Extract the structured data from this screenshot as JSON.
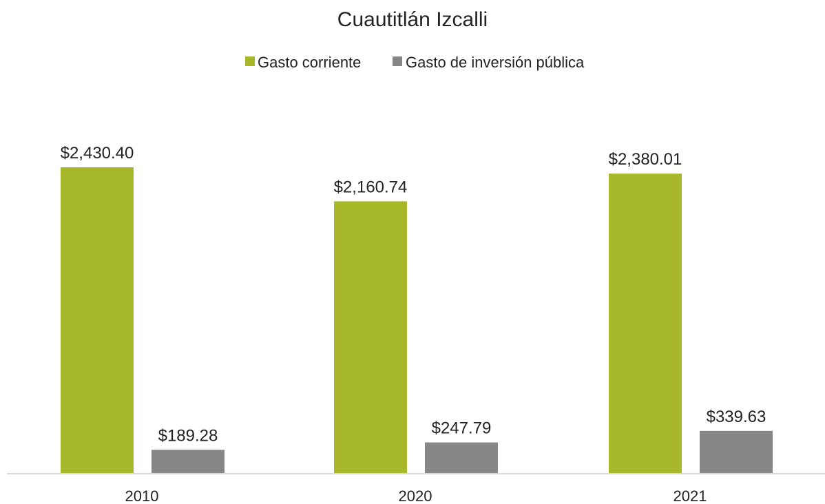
{
  "chart_data": {
    "type": "bar",
    "title": "Cuautitlán Izcalli",
    "categories": [
      "2010",
      "2020",
      "2021"
    ],
    "series": [
      {
        "name": "Gasto corriente",
        "color": "#a7b82a",
        "values": [
          2430.4,
          2160.74,
          2380.01
        ],
        "labels": [
          "$2,430.40",
          "$2,160.74",
          "$2,380.01"
        ]
      },
      {
        "name": "Gasto de inversión pública",
        "color": "#878787",
        "values": [
          189.28,
          247.79,
          339.63
        ],
        "labels": [
          "$189.28",
          "$247.79",
          "$339.63"
        ]
      }
    ],
    "ylim": [
      0,
      2430.4
    ],
    "grid": false,
    "legend_position": "top-center",
    "axis_color": "#d9d9d9"
  }
}
